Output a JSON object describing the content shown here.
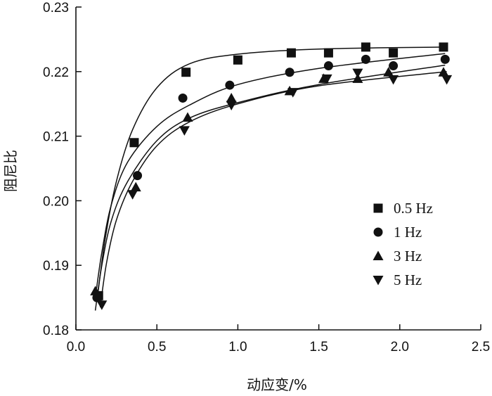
{
  "chart_data": {
    "type": "scatter",
    "xlabel": "动应变/%",
    "ylabel": "阻尼比",
    "xlim": [
      0.0,
      2.5
    ],
    "ylim": [
      0.18,
      0.23
    ],
    "x_ticks": [
      "0.0",
      "0.5",
      "1.0",
      "1.5",
      "2.0",
      "2.5"
    ],
    "y_ticks": [
      "0.18",
      "0.19",
      "0.20",
      "0.21",
      "0.22",
      "0.23"
    ],
    "grid": false,
    "legend_position": "right",
    "series": [
      {
        "name": "0.5 Hz",
        "marker": "square",
        "x": [
          0.14,
          0.36,
          0.68,
          1.0,
          1.33,
          1.56,
          1.79,
          1.96,
          2.27
        ],
        "y": [
          0.1853,
          0.209,
          0.2199,
          0.2218,
          0.2229,
          0.2229,
          0.2238,
          0.2229,
          0.2238
        ],
        "fit": [
          [
            0.13,
            0.1845
          ],
          [
            0.18,
            0.194
          ],
          [
            0.25,
            0.203
          ],
          [
            0.35,
            0.211
          ],
          [
            0.5,
            0.2175
          ],
          [
            0.7,
            0.2212
          ],
          [
            1.0,
            0.2227
          ],
          [
            1.5,
            0.2235
          ],
          [
            2.27,
            0.2238
          ]
        ]
      },
      {
        "name": "1 Hz",
        "marker": "circle",
        "x": [
          0.13,
          0.38,
          0.66,
          0.95,
          1.32,
          1.56,
          1.79,
          1.96,
          2.28
        ],
        "y": [
          0.185,
          0.2039,
          0.2159,
          0.2179,
          0.2199,
          0.2209,
          0.2219,
          0.2209,
          0.2219
        ],
        "fit": [
          [
            0.12,
            0.185
          ],
          [
            0.16,
            0.192
          ],
          [
            0.22,
            0.1995
          ],
          [
            0.32,
            0.206
          ],
          [
            0.5,
            0.2115
          ],
          [
            0.7,
            0.2148
          ],
          [
            1.0,
            0.218
          ],
          [
            1.5,
            0.2205
          ],
          [
            2.28,
            0.2228
          ]
        ]
      },
      {
        "name": "3 Hz",
        "marker": "triangle-up",
        "x": [
          0.12,
          0.37,
          0.69,
          0.96,
          1.32,
          1.53,
          1.74,
          1.93,
          2.27
        ],
        "y": [
          0.186,
          0.2021,
          0.2129,
          0.2159,
          0.217,
          0.2189,
          0.2189,
          0.2199,
          0.2199
        ],
        "fit": [
          [
            0.12,
            0.183
          ],
          [
            0.16,
            0.19
          ],
          [
            0.22,
            0.197
          ],
          [
            0.32,
            0.203
          ],
          [
            0.5,
            0.2093
          ],
          [
            0.7,
            0.2128
          ],
          [
            1.0,
            0.2152
          ],
          [
            1.5,
            0.218
          ],
          [
            2.28,
            0.221
          ]
        ]
      },
      {
        "name": "5 Hz",
        "marker": "triangle-down",
        "x": [
          0.16,
          0.35,
          0.67,
          0.96,
          1.34,
          1.55,
          1.74,
          1.96,
          2.29
        ],
        "y": [
          0.1839,
          0.201,
          0.2109,
          0.2148,
          0.2168,
          0.2189,
          0.2198,
          0.2188,
          0.2188
        ],
        "fit": [
          [
            0.15,
            0.1835
          ],
          [
            0.19,
            0.1905
          ],
          [
            0.25,
            0.197
          ],
          [
            0.35,
            0.203
          ],
          [
            0.5,
            0.2085
          ],
          [
            0.7,
            0.2122
          ],
          [
            1.0,
            0.215
          ],
          [
            1.5,
            0.2178
          ],
          [
            2.29,
            0.22
          ]
        ]
      }
    ]
  }
}
